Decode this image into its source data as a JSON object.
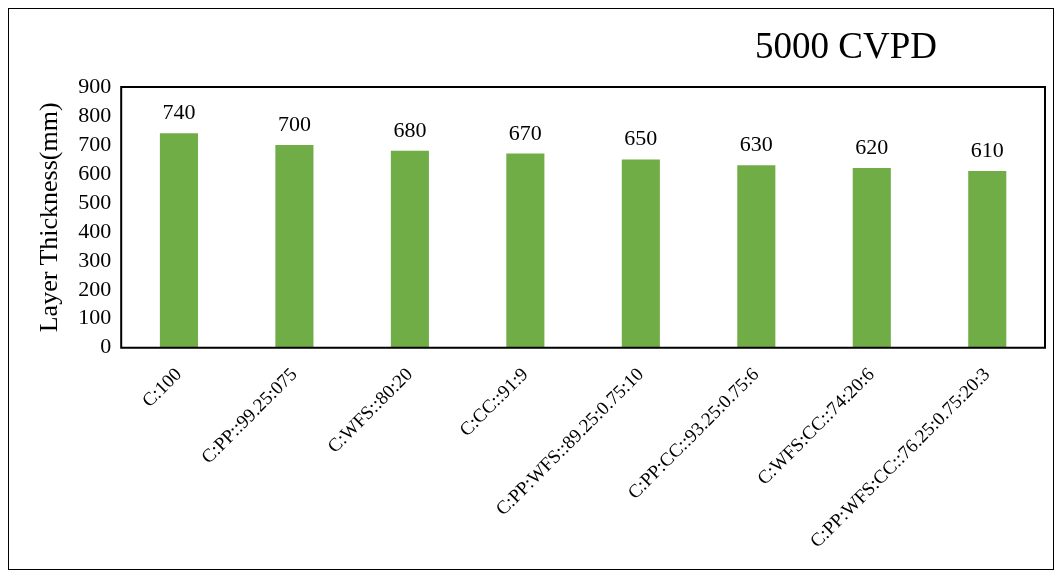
{
  "chart_data": {
    "type": "bar",
    "title": "5000 CVPD",
    "ylabel": "Layer Thickness(mm)",
    "categories": [
      "C:100",
      "C:PP::99.25:075",
      "C:WFS::80:20",
      "C:CC::91:9",
      "C:PP:WFS::89.25:0.75:10",
      "C:PP:CC::93.25:0.75:6",
      "C:WFS:CC::74:20:6",
      "C:PP:WFS:CC::76.25:0.75:20:3"
    ],
    "values": [
      740,
      700,
      680,
      670,
      650,
      630,
      620,
      610
    ],
    "color": "#70ad47",
    "ylim": [
      0,
      900
    ],
    "yticks": [
      0,
      100,
      200,
      300,
      400,
      500,
      600,
      700,
      800,
      900
    ],
    "grid": false,
    "legend": false,
    "data_labels": true
  }
}
